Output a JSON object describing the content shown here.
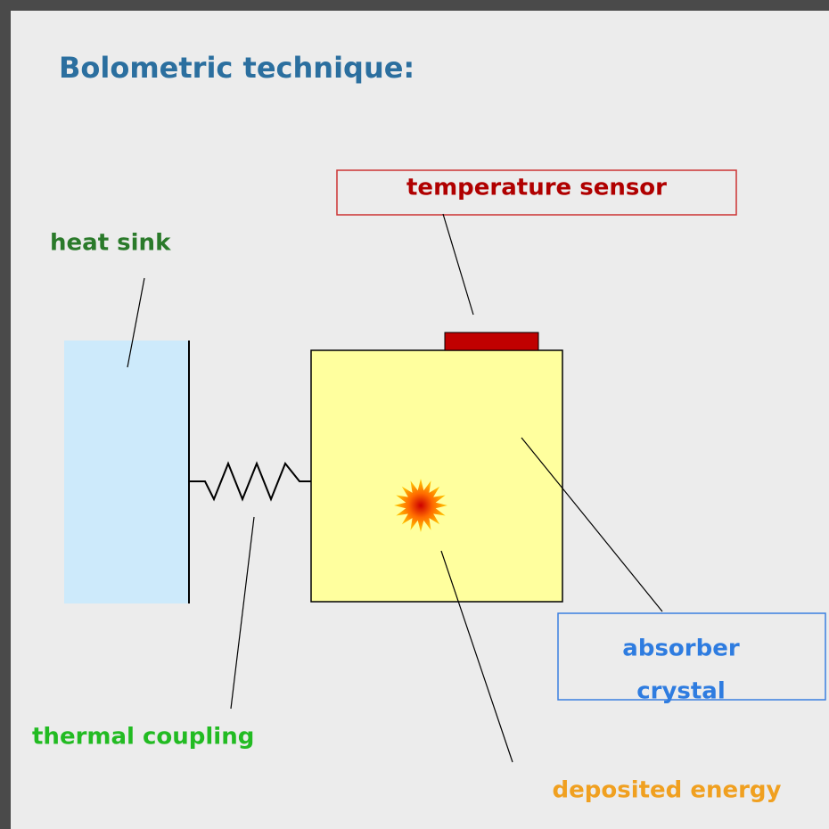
{
  "title": "Bolometric technique:",
  "nodes": [
    {
      "label": "temperature sensor"
    },
    {
      "label": "heat sink"
    },
    {
      "lines": [
        "absorber",
        "crystal"
      ]
    },
    {
      "label": "thermal coupling"
    },
    {
      "label": "deposited energy"
    }
  ]
}
